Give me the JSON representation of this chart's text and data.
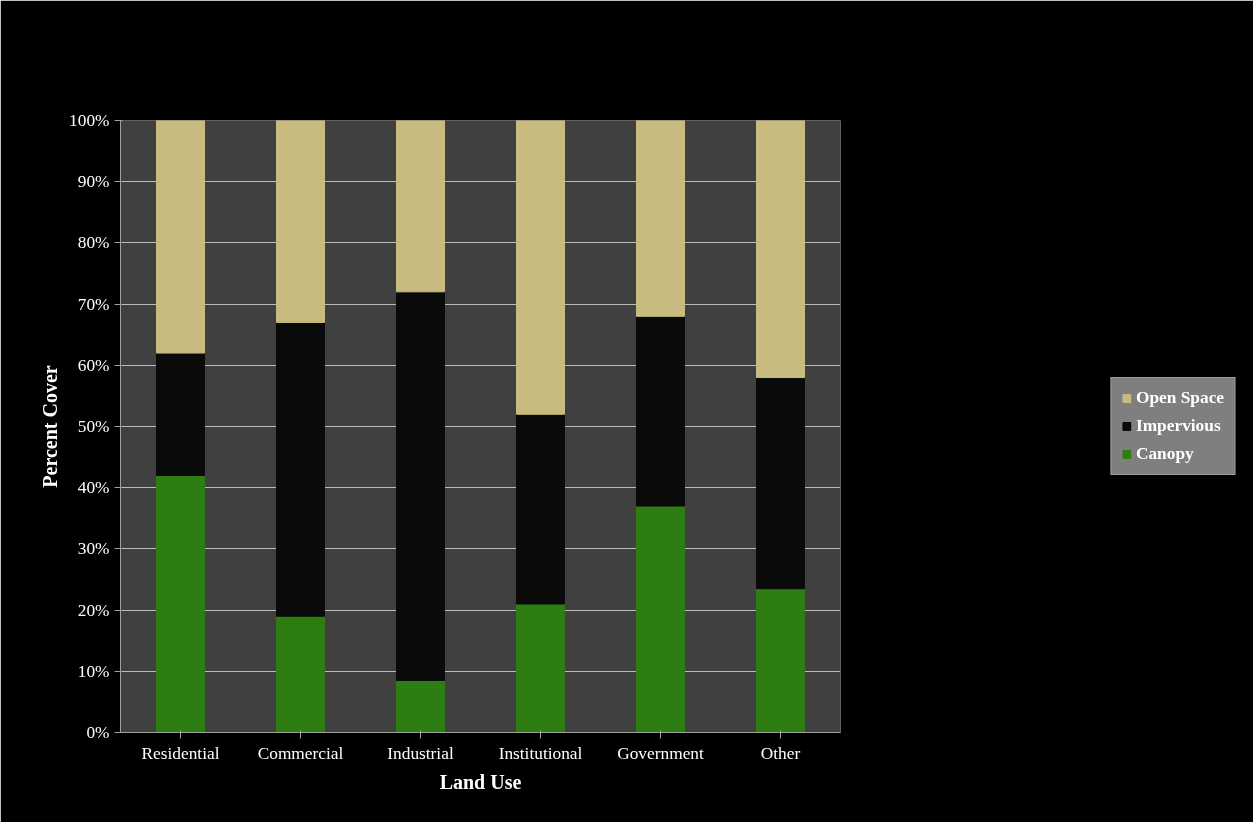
{
  "chart_data": {
    "type": "bar",
    "stacked": true,
    "xlabel": "Land Use",
    "ylabel": "Percent Cover",
    "categories": [
      "Residential",
      "Commercial",
      "Industrial",
      "Institutional",
      "Government",
      "Other"
    ],
    "series": [
      {
        "name": "Canopy",
        "color": "#2e7d12",
        "values": [
          42,
          19,
          8.5,
          21,
          37,
          23.5
        ]
      },
      {
        "name": "Impervious",
        "color": "#0a0a0a",
        "values": [
          20,
          48,
          63.5,
          31,
          31,
          34.5
        ]
      },
      {
        "name": "Open Space",
        "color": "#c8bb80",
        "values": [
          38,
          33,
          28,
          48,
          32,
          42
        ]
      }
    ],
    "ylim": [
      0,
      100
    ],
    "yticks": [
      {
        "value": 0,
        "label": "0%"
      },
      {
        "value": 10,
        "label": "10%"
      },
      {
        "value": 20,
        "label": "20%"
      },
      {
        "value": 30,
        "label": "30%"
      },
      {
        "value": 40,
        "label": "40%"
      },
      {
        "value": 50,
        "label": "50%"
      },
      {
        "value": 60,
        "label": "60%"
      },
      {
        "value": 70,
        "label": "70%"
      },
      {
        "value": 80,
        "label": "80%"
      },
      {
        "value": 90,
        "label": "90%"
      },
      {
        "value": 100,
        "label": "100%"
      }
    ],
    "grid": "y",
    "legend": "right"
  }
}
